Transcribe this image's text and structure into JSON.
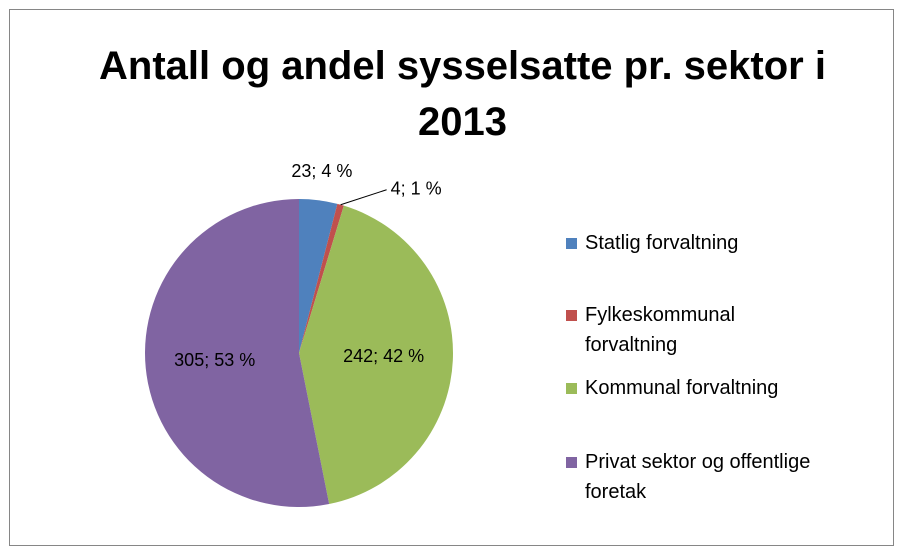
{
  "chart_data": {
    "type": "pie",
    "title": "Antall og andel sysselsatte pr. sektor i 2013",
    "categories": [
      "Statlig forvaltning",
      "Fylkeskommunal forvaltning",
      "Kommunal forvaltning",
      "Privat sektor og offentlige foretak"
    ],
    "values": [
      23,
      4,
      242,
      305
    ],
    "value_labels": [
      "23; 4 %",
      "4; 1 %",
      "242; 42 %",
      "305; 53 %"
    ],
    "colors": [
      "#4f81bd",
      "#c0504d",
      "#9bbb59",
      "#8064a2"
    ],
    "legend": "right"
  }
}
